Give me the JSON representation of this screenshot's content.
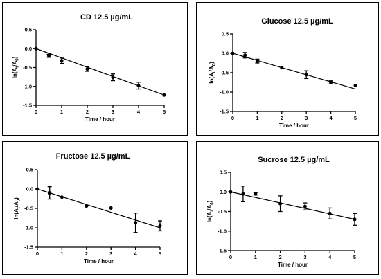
{
  "chart_data": [
    {
      "type": "scatter",
      "title": "CD 12.5 µg/mL",
      "xlabel": "Time / hour",
      "ylabel": "ln(At/A0)",
      "ylabel_main": "ln(A",
      "ylabel_sub1": "t",
      "ylabel_mid": "/A",
      "ylabel_sub2": "0",
      "ylabel_end": ")",
      "xlim": [
        0,
        5
      ],
      "ylim": [
        -1.5,
        0.5
      ],
      "xticks": [
        "0",
        "1",
        "2",
        "3",
        "4",
        "5"
      ],
      "yticks": [
        "0.5",
        "0.0",
        "-0.5",
        "-1.0",
        "-1.5"
      ],
      "points": [
        {
          "x": 0,
          "y": 0,
          "err": 0
        },
        {
          "x": 0.5,
          "y": -0.19,
          "err": 0.04
        },
        {
          "x": 1,
          "y": -0.32,
          "err": 0.07
        },
        {
          "x": 2,
          "y": -0.54,
          "err": 0.06
        },
        {
          "x": 3,
          "y": -0.76,
          "err": 0.09
        },
        {
          "x": 4,
          "y": -0.98,
          "err": 0.09
        },
        {
          "x": 5,
          "y": -1.23,
          "err": 0
        }
      ],
      "fit": [
        [
          0,
          0
        ],
        [
          5,
          -1.23
        ]
      ]
    },
    {
      "type": "scatter",
      "title": "Glucose 12.5 µg/mL",
      "xlabel": "Time / hour",
      "ylabel": "ln(At/A0)",
      "ylabel_main": "ln(A",
      "ylabel_sub1": "t",
      "ylabel_mid": "/A",
      "ylabel_sub2": "0",
      "ylabel_end": ")",
      "xlim": [
        0,
        5
      ],
      "ylim": [
        -1.5,
        0.5
      ],
      "xticks": [
        "0",
        "1",
        "2",
        "3",
        "4",
        "5"
      ],
      "yticks": [
        "0.5",
        "0.0",
        "-0.5",
        "-1.0",
        "-1.5"
      ],
      "points": [
        {
          "x": 0,
          "y": 0,
          "err": 0
        },
        {
          "x": 0.5,
          "y": -0.05,
          "err": 0.07
        },
        {
          "x": 1,
          "y": -0.2,
          "err": 0.05
        },
        {
          "x": 2,
          "y": -0.37,
          "err": 0
        },
        {
          "x": 3,
          "y": -0.55,
          "err": 0.1
        },
        {
          "x": 4,
          "y": -0.75,
          "err": 0.04
        },
        {
          "x": 5,
          "y": -0.83,
          "err": 0
        }
      ],
      "fit": [
        [
          0,
          0
        ],
        [
          5,
          -0.92
        ]
      ]
    },
    {
      "type": "scatter",
      "title": "Fructose 12.5 µg/mL",
      "xlabel": "Time / hour",
      "ylabel": "ln(At/A0)",
      "ylabel_main": "ln(A",
      "ylabel_sub1": "t",
      "ylabel_mid": "/A",
      "ylabel_sub2": "0",
      "ylabel_end": ")",
      "xlim": [
        0,
        5
      ],
      "ylim": [
        -1.5,
        0.5
      ],
      "xticks": [
        "0",
        "1",
        "2",
        "3",
        "4",
        "5"
      ],
      "yticks": [
        "0.5",
        "0.0",
        "-0.5",
        "-1.0",
        "-1.5"
      ],
      "points": [
        {
          "x": 0,
          "y": 0,
          "err": 0
        },
        {
          "x": 0.5,
          "y": -0.1,
          "err": 0.16
        },
        {
          "x": 1,
          "y": -0.21,
          "err": 0
        },
        {
          "x": 2,
          "y": -0.44,
          "err": 0
        },
        {
          "x": 3,
          "y": -0.49,
          "err": 0
        },
        {
          "x": 4,
          "y": -0.87,
          "err": 0.25
        },
        {
          "x": 5,
          "y": -0.95,
          "err": 0.13
        }
      ],
      "fit": [
        [
          0,
          0
        ],
        [
          5,
          -1.0
        ]
      ]
    },
    {
      "type": "scatter",
      "title": "Sucrose 12.5 µg/mL",
      "xlabel": "Time / hour",
      "ylabel": "ln(At/A0)",
      "ylabel_main": "ln(A",
      "ylabel_sub1": "t",
      "ylabel_mid": "/A",
      "ylabel_sub2": "0",
      "ylabel_end": ")",
      "xlim": [
        0,
        5
      ],
      "ylim": [
        -1.5,
        0.5
      ],
      "xticks": [
        "0",
        "1",
        "2",
        "3",
        "4",
        "5"
      ],
      "yticks": [
        "0.5",
        "0.0",
        "-0.5",
        "-1.0",
        "-1.5"
      ],
      "points": [
        {
          "x": 0,
          "y": 0,
          "err": 0
        },
        {
          "x": 0.5,
          "y": -0.05,
          "err": 0.2
        },
        {
          "x": 1,
          "y": -0.05,
          "err": 0.03
        },
        {
          "x": 2,
          "y": -0.3,
          "err": 0.2
        },
        {
          "x": 3,
          "y": -0.37,
          "err": 0.09
        },
        {
          "x": 4,
          "y": -0.55,
          "err": 0.14
        },
        {
          "x": 5,
          "y": -0.7,
          "err": 0.15
        }
      ],
      "fit": [
        [
          0,
          0
        ],
        [
          5,
          -0.7
        ]
      ]
    }
  ]
}
